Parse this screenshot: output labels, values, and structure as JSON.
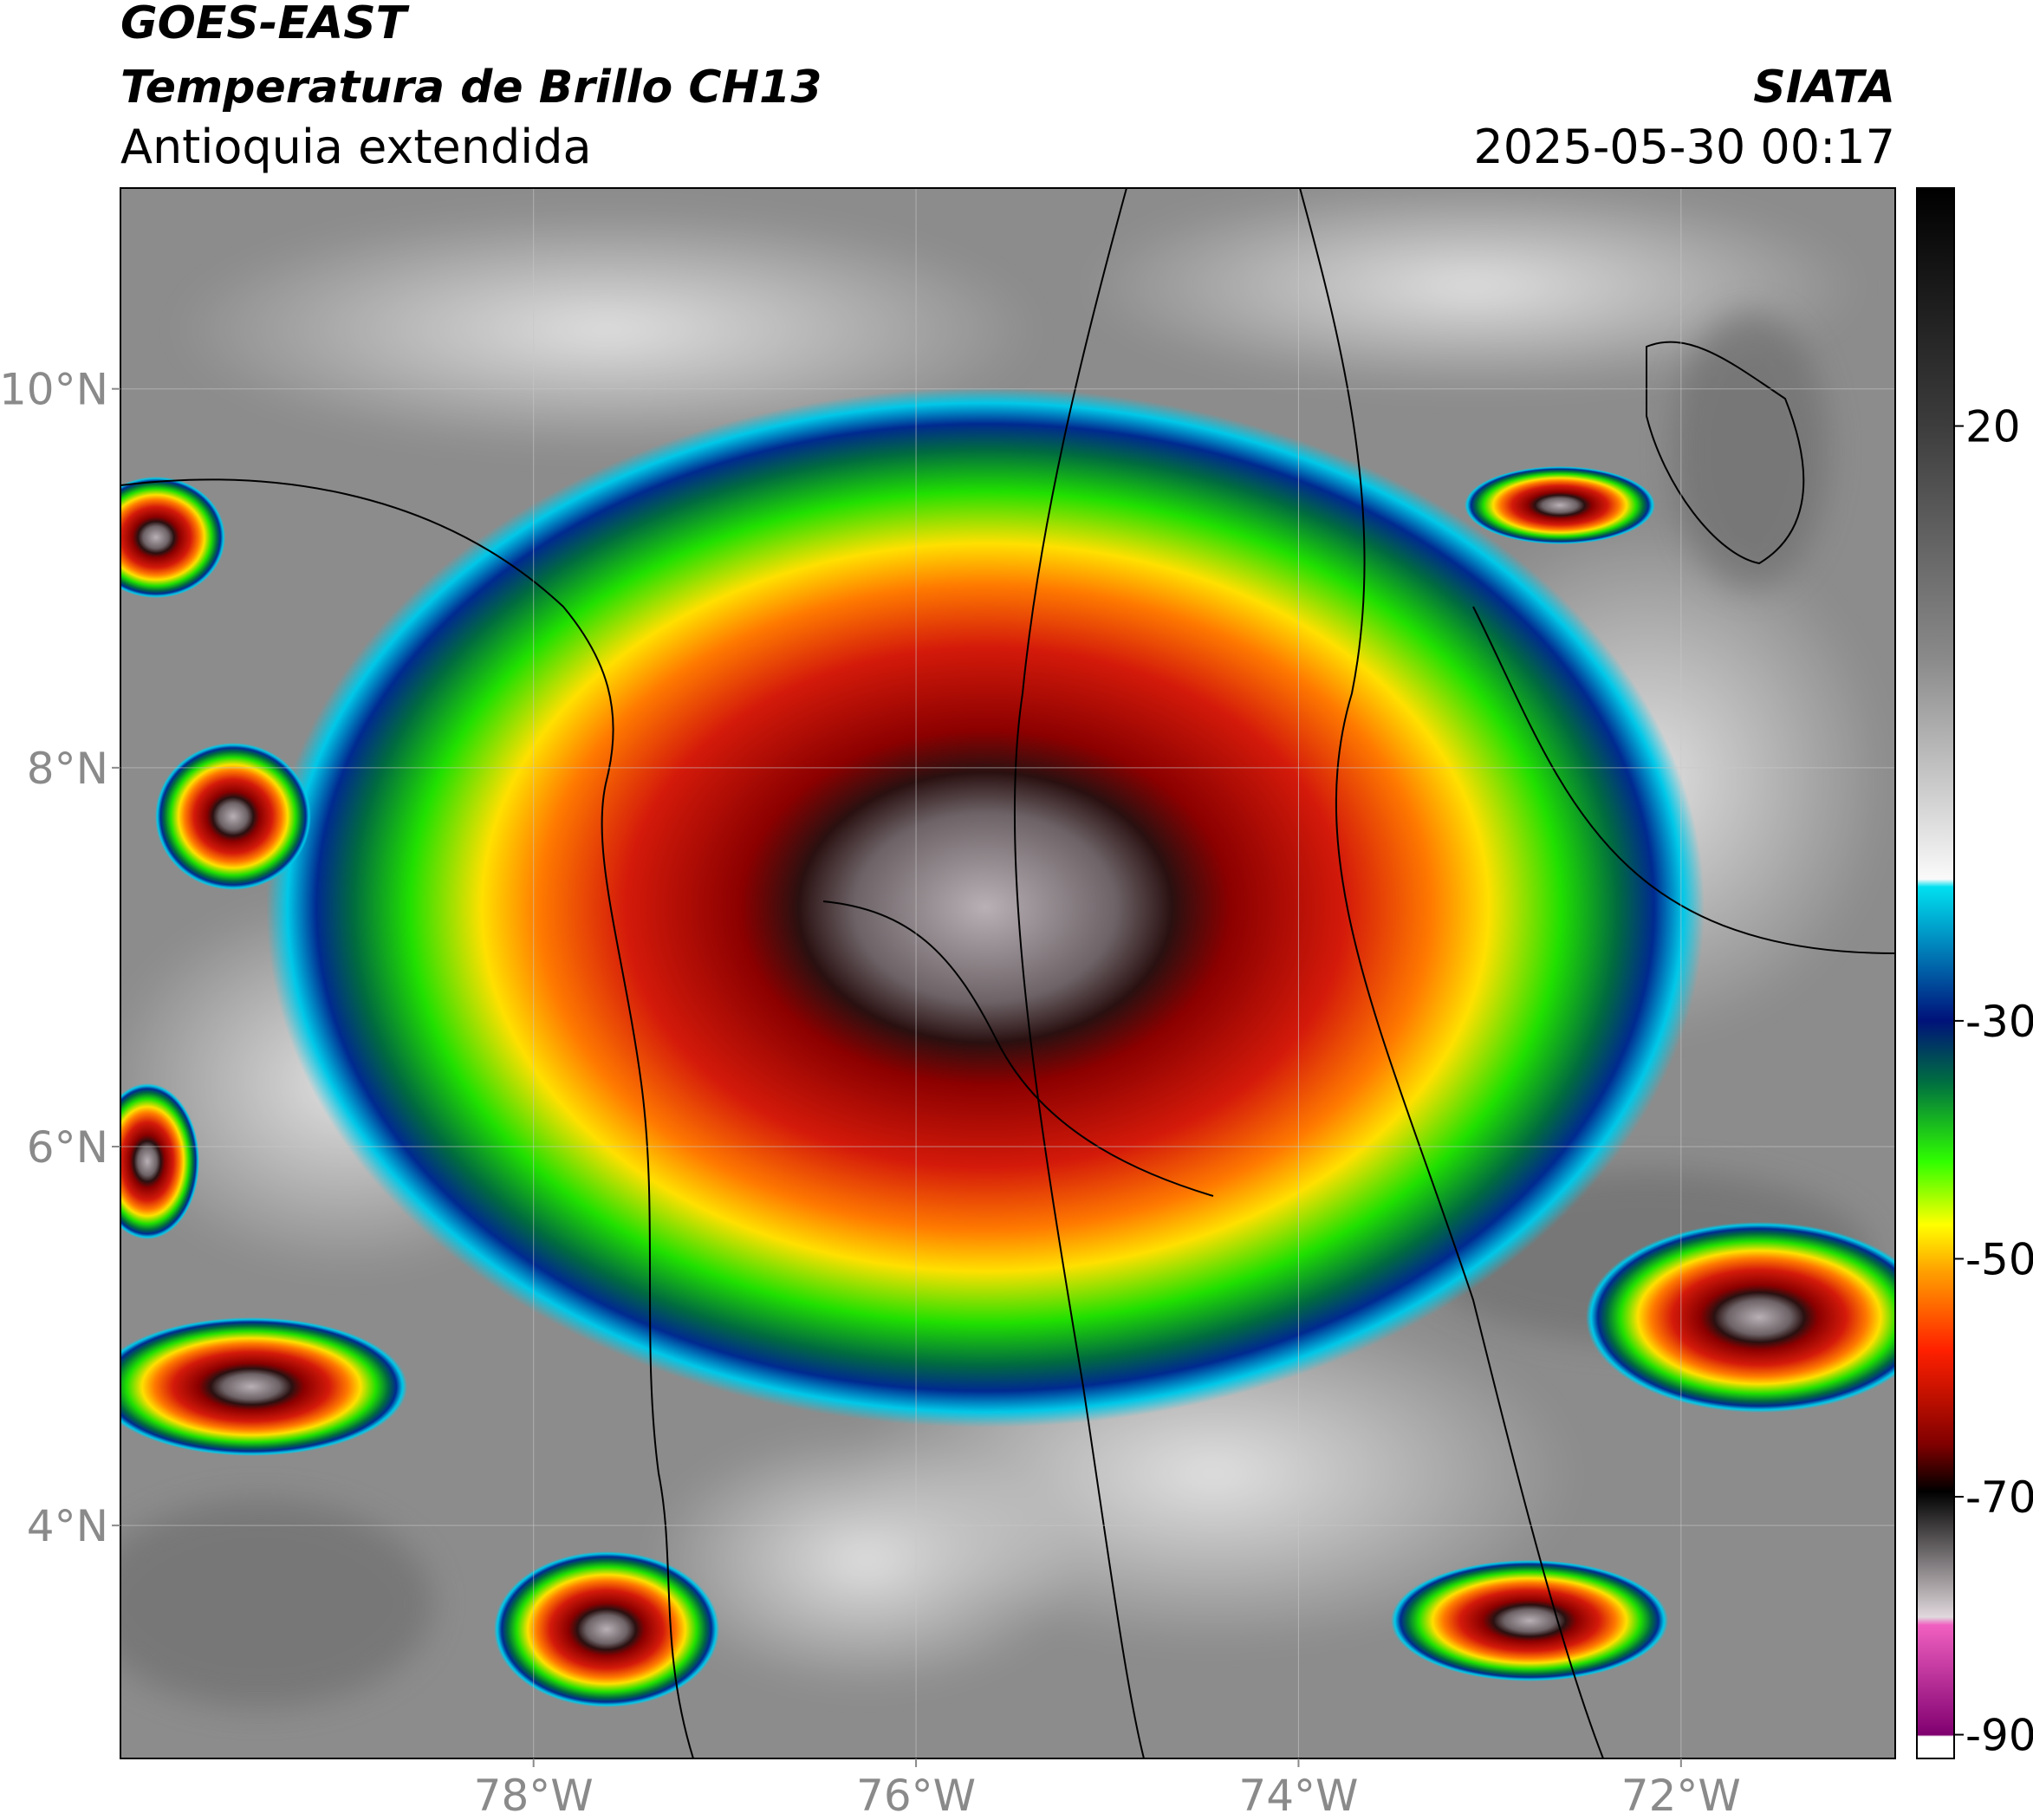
{
  "header": {
    "satellite": "GOES-EAST",
    "product": "Temperatura de Brillo CH13",
    "region": "Antioquia extendida",
    "source": "SIATA",
    "datetime": "2025-05-30 00:17"
  },
  "map": {
    "xlim": [
      -80.16,
      -70.88
    ],
    "ylim": [
      2.77,
      11.06
    ],
    "xticks": [
      {
        "value": -78,
        "label": "78°W"
      },
      {
        "value": -76,
        "label": "76°W"
      },
      {
        "value": -74,
        "label": "74°W"
      },
      {
        "value": -72,
        "label": "72°W"
      }
    ],
    "yticks": [
      {
        "value": 4,
        "label": "4°N"
      },
      {
        "value": 6,
        "label": "6°N"
      },
      {
        "value": 8,
        "label": "8°N"
      },
      {
        "value": 10,
        "label": "10°N"
      }
    ],
    "grid": true
  },
  "colorbar": {
    "lim": [
      -92,
      40
    ],
    "ticks": [
      20,
      -30,
      -50,
      -70,
      -90
    ]
  }
}
